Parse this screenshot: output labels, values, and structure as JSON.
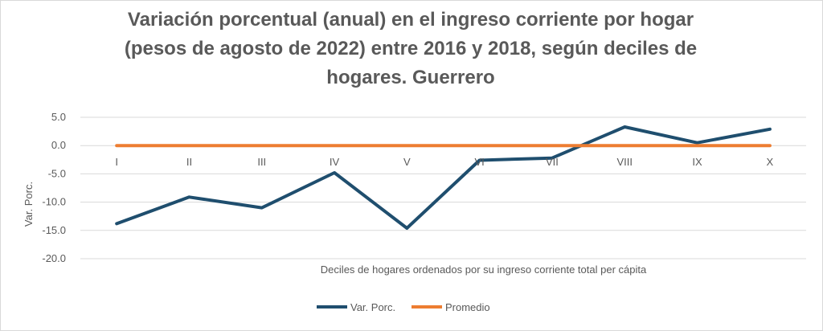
{
  "chart_data": {
    "type": "line",
    "title_lines": [
      "Variación porcentual (anual) en el ingreso corriente por hogar",
      "(pesos de agosto de 2022) entre 2016 y 2018, según deciles de",
      "hogares. Guerrero"
    ],
    "xlabel": "Deciles de hogares ordenados por su ingreso corriente total per cápita",
    "ylabel": "Var. Porc.",
    "categories": [
      "I",
      "II",
      "III",
      "IV",
      "V",
      "VI",
      "VII",
      "VIII",
      "IX",
      "X"
    ],
    "ylim": [
      -20,
      5
    ],
    "yticks": [
      5,
      0,
      -5,
      -10,
      -15,
      -20
    ],
    "ytick_labels": [
      "5.0",
      "0.0",
      "-5.0",
      "-10.0",
      "-15.0",
      "-20.0"
    ],
    "grid": true,
    "legend_position": "bottom",
    "series": [
      {
        "name": "Var.  Porc.",
        "color": "#1f4e6e",
        "values": [
          -13.8,
          -9.1,
          -11.0,
          -4.8,
          -14.6,
          -2.6,
          -2.2,
          3.3,
          0.5,
          2.9
        ]
      },
      {
        "name": "Promedio",
        "color": "#ed7d31",
        "values": [
          0,
          0,
          0,
          0,
          0,
          0,
          0,
          0,
          0,
          0
        ]
      }
    ]
  }
}
